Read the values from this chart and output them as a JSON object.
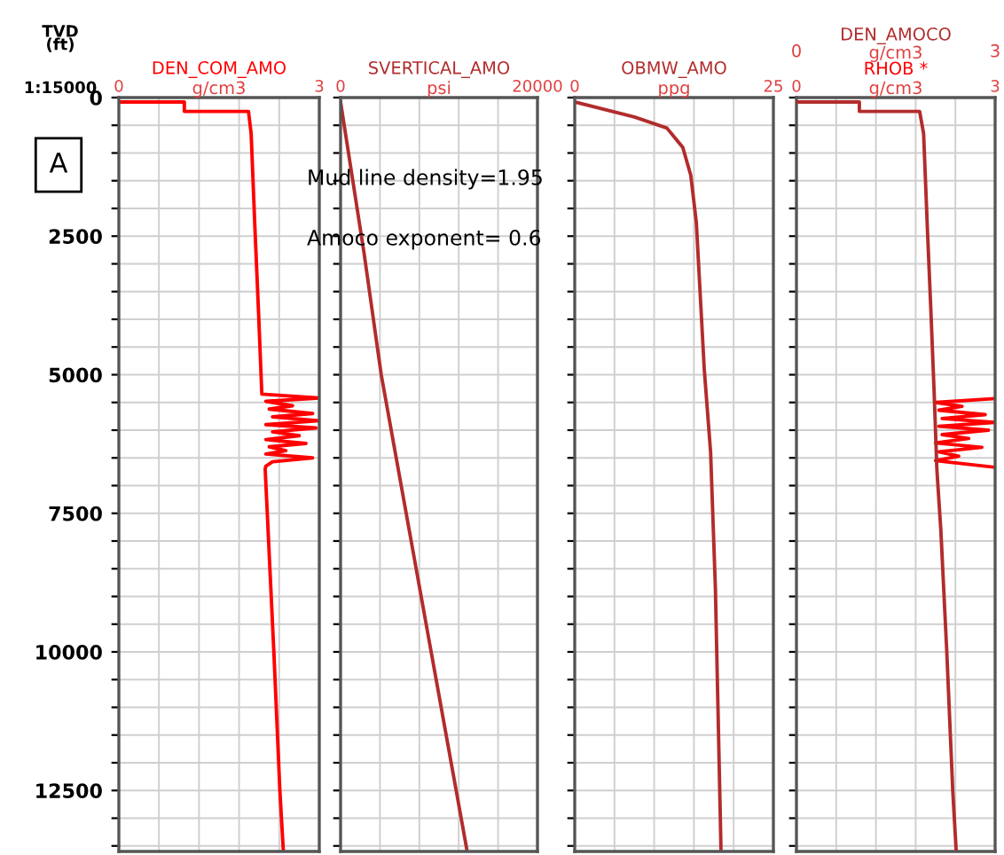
{
  "chart_data": [
    {
      "type": "line",
      "ylabel": "TVD (ft)",
      "xlabel": "g/cm3",
      "xlim": [
        0,
        3
      ],
      "xticks": [
        0,
        {
          "value": 0.6,
          "label": null
        },
        {
          "value": 1.2,
          "label": null
        },
        {
          "value": 1.8,
          "label": null
        },
        {
          "value": 2.4,
          "label": null
        },
        3
      ],
      "ylim": [
        13600,
        0
      ],
      "yticks": [
        0,
        {
          "value": 500,
          "label": null
        },
        {
          "value": 1000,
          "label": null
        },
        {
          "value": 1500,
          "label": null
        },
        {
          "value": 2000,
          "label": null
        },
        2500,
        {
          "value": 3000,
          "label": null
        },
        {
          "value": 3500,
          "label": null
        },
        {
          "value": 4000,
          "label": null
        },
        {
          "value": 4500,
          "label": null
        },
        5000,
        {
          "value": 5500,
          "label": null
        },
        {
          "value": 6000,
          "label": null
        },
        {
          "value": 6500,
          "label": null
        },
        {
          "value": 7000,
          "label": null
        },
        7500,
        {
          "value": 8000,
          "label": null
        },
        {
          "value": 8500,
          "label": null
        },
        {
          "value": 9000,
          "label": null
        },
        {
          "value": 9500,
          "label": null
        },
        10000,
        {
          "value": 10500,
          "label": null
        },
        {
          "value": 11000,
          "label": null
        },
        {
          "value": 11500,
          "label": null
        },
        {
          "value": 12000,
          "label": null
        },
        12500,
        {
          "value": 13000,
          "label": null
        },
        {
          "value": 13500,
          "label": null
        }
      ],
      "grid": true,
      "annotations": [
        "A",
        "1:15000",
        "Mud line density=1.95",
        "Amoco exponent= 0.6"
      ],
      "series": [
        {
          "name": "DEN_COM_AMO",
          "color": "#ff0000",
          "x": [
            0,
            0.98,
            0.98,
            1.94,
            1.98,
            2.04,
            2.09,
            2.14,
            3.0,
            2.2,
            2.6,
            2.25,
            2.9,
            2.3,
            3.0,
            2.2,
            2.95,
            2.3,
            2.7,
            2.2,
            2.8,
            2.25,
            2.5,
            2.2,
            2.9,
            2.3,
            2.2,
            2.19,
            2.32,
            2.41,
            2.46
          ],
          "values": [
            80,
            80,
            250,
            250,
            650,
            2450,
            3850,
            5350,
            5420,
            5480,
            5560,
            5620,
            5700,
            5760,
            5830,
            5900,
            5960,
            6030,
            6100,
            6170,
            6240,
            6300,
            6370,
            6430,
            6500,
            6570,
            6650,
            6700,
            10000,
            12500,
            13550
          ]
        }
      ]
    },
    {
      "type": "line",
      "xlabel": "psi",
      "xlim": [
        0,
        20000
      ],
      "xticks": [
        0,
        {
          "value": 4000,
          "label": null
        },
        {
          "value": 8000,
          "label": null
        },
        {
          "value": 12000,
          "label": null
        },
        {
          "value": 16000,
          "label": null
        },
        20000
      ],
      "ylim": [
        13600,
        0
      ],
      "yticks": [
        0,
        {
          "value": 500,
          "label": null
        },
        {
          "value": 1000,
          "label": null
        },
        {
          "value": 1500,
          "label": null
        },
        {
          "value": 2000,
          "label": null
        },
        2500,
        {
          "value": 3000,
          "label": null
        },
        {
          "value": 3500,
          "label": null
        },
        {
          "value": 4000,
          "label": null
        },
        {
          "value": 4500,
          "label": null
        },
        5000,
        {
          "value": 5500,
          "label": null
        },
        {
          "value": 6000,
          "label": null
        },
        {
          "value": 6500,
          "label": null
        },
        {
          "value": 7000,
          "label": null
        },
        7500,
        {
          "value": 8000,
          "label": null
        },
        {
          "value": 8500,
          "label": null
        },
        {
          "value": 9000,
          "label": null
        },
        {
          "value": 9500,
          "label": null
        },
        10000,
        {
          "value": 10500,
          "label": null
        },
        {
          "value": 11000,
          "label": null
        },
        {
          "value": 11500,
          "label": null
        },
        {
          "value": 12000,
          "label": null
        },
        12500,
        {
          "value": 13000,
          "label": null
        },
        {
          "value": 13500,
          "label": null
        }
      ],
      "grid": true,
      "tick_labels": "x",
      "series": [
        {
          "name": "SVERTICAL_AMO",
          "color": "#b22c2c",
          "x": [
            0,
            2380,
            4130,
            9200,
            12810
          ],
          "values": [
            80,
            2800,
            5000,
            10000,
            13550
          ]
        }
      ]
    },
    {
      "type": "line",
      "xlabel": "ppg",
      "xlim": [
        0,
        25
      ],
      "xticks": [
        0,
        {
          "value": 5,
          "label": null
        },
        {
          "value": 10,
          "label": null
        },
        {
          "value": 15,
          "label": null
        },
        {
          "value": 20,
          "label": null
        },
        25
      ],
      "ylim": [
        13600,
        0
      ],
      "yticks": [
        0,
        {
          "value": 500,
          "label": null
        },
        {
          "value": 1000,
          "label": null
        },
        {
          "value": 1500,
          "label": null
        },
        {
          "value": 2000,
          "label": null
        },
        2500,
        {
          "value": 3000,
          "label": null
        },
        {
          "value": 3500,
          "label": null
        },
        {
          "value": 4000,
          "label": null
        },
        {
          "value": 4500,
          "label": null
        },
        5000,
        {
          "value": 5500,
          "label": null
        },
        {
          "value": 6000,
          "label": null
        },
        {
          "value": 6500,
          "label": null
        },
        {
          "value": 7000,
          "label": null
        },
        7500,
        {
          "value": 8000,
          "label": null
        },
        {
          "value": 8500,
          "label": null
        },
        {
          "value": 9000,
          "label": null
        },
        {
          "value": 9500,
          "label": null
        },
        10000,
        {
          "value": 10500,
          "label": null
        },
        {
          "value": 11000,
          "label": null
        },
        {
          "value": 11500,
          "label": null
        },
        {
          "value": 12000,
          "label": null
        },
        12500,
        {
          "value": 13000,
          "label": null
        },
        {
          "value": 13500,
          "label": null
        }
      ],
      "grid": true,
      "tick_labels": "x",
      "series": [
        {
          "name": "OBMW_AMO",
          "color": "#b22c2c",
          "x": [
            0,
            7.5,
            11.6,
            13.6,
            14.6,
            15.3,
            16.3,
            17.1,
            17.7,
            18.3,
            18.4
          ],
          "values": [
            80,
            350,
            550,
            900,
            1400,
            2250,
            4900,
            6400,
            8850,
            12850,
            13550
          ]
        }
      ]
    },
    {
      "type": "line",
      "xlabel": "g/cm3",
      "xlim": [
        0,
        3
      ],
      "xticks": [
        0,
        {
          "value": 0.6,
          "label": null
        },
        {
          "value": 1.2,
          "label": null
        },
        {
          "value": 1.8,
          "label": null
        },
        {
          "value": 2.4,
          "label": null
        },
        3
      ],
      "x2label": "g/cm3",
      "x2lim": [
        0,
        3
      ],
      "x2ticks": [
        0,
        3
      ],
      "ylim": [
        13600,
        0
      ],
      "yticks": [
        0,
        {
          "value": 500,
          "label": null
        },
        {
          "value": 1000,
          "label": null
        },
        {
          "value": 1500,
          "label": null
        },
        {
          "value": 2000,
          "label": null
        },
        2500,
        {
          "value": 3000,
          "label": null
        },
        {
          "value": 3500,
          "label": null
        },
        {
          "value": 4000,
          "label": null
        },
        {
          "value": 4500,
          "label": null
        },
        5000,
        {
          "value": 5500,
          "label": null
        },
        {
          "value": 6000,
          "label": null
        },
        {
          "value": 6500,
          "label": null
        },
        {
          "value": 7000,
          "label": null
        },
        7500,
        {
          "value": 8000,
          "label": null
        },
        {
          "value": 8500,
          "label": null
        },
        {
          "value": 9000,
          "label": null
        },
        {
          "value": 9500,
          "label": null
        },
        10000,
        {
          "value": 10500,
          "label": null
        },
        {
          "value": 11000,
          "label": null
        },
        {
          "value": 11500,
          "label": null
        },
        {
          "value": 12000,
          "label": null
        },
        12500,
        {
          "value": 13000,
          "label": null
        },
        {
          "value": 13500,
          "label": null
        }
      ],
      "grid": true,
      "tick_labels": "x",
      "series": [
        {
          "name": "DEN_AMOCO",
          "axis": "x2",
          "color": "#b22c2c",
          "x": [
            0,
            0.95,
            0.95,
            1.86,
            1.92,
            1.98,
            2.03,
            2.08,
            2.12,
            2.18,
            2.27,
            2.36,
            2.41
          ],
          "values": [
            80,
            80,
            250,
            250,
            650,
            2450,
            3850,
            5350,
            6700,
            7800,
            10000,
            12500,
            13550
          ]
        },
        {
          "name": "RHOB *",
          "color": "#ff0000",
          "x": [
            3.0,
            2.1,
            2.5,
            2.15,
            2.85,
            2.2,
            3.0,
            2.15,
            2.9,
            2.2,
            2.6,
            2.1,
            2.8,
            2.15,
            2.45,
            2.1,
            3.0
          ],
          "values": [
            5430,
            5500,
            5570,
            5640,
            5720,
            5790,
            5860,
            5930,
            6000,
            6080,
            6150,
            6230,
            6310,
            6390,
            6470,
            6550,
            6670
          ]
        }
      ]
    }
  ]
}
